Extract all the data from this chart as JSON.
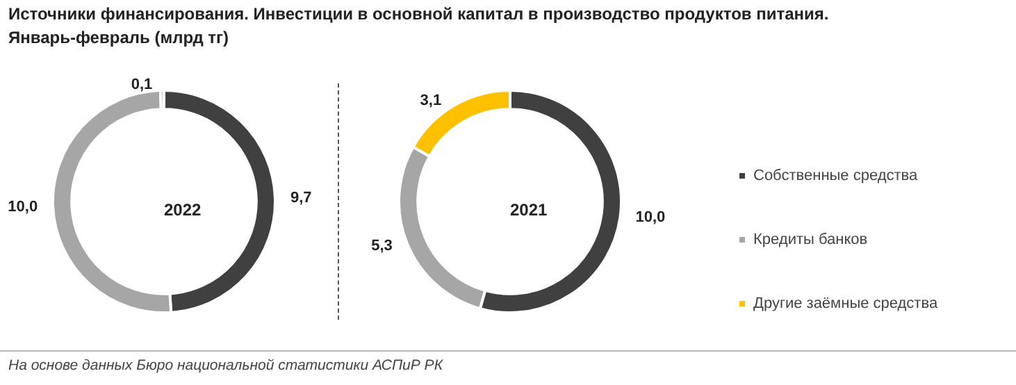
{
  "chart_data": [
    {
      "type": "donut",
      "title": "Источники финансирования. Инвестиции в основной капитал в производство продуктов питания.",
      "subtitle": "Январь-февраль (млрд тг)",
      "categories": [
        null,
        null,
        null
      ],
      "values": [
        9.7,
        10.0,
        0.1
      ],
      "value_labels": [
        "9,7",
        "10,0",
        "0,1"
      ],
      "colors": [
        "#404040",
        "#a6a6a6",
        "#ffc000"
      ],
      "annotations": [
        "2022",
        "На основе данных Бюро национальной статистики АСПиР РК"
      ]
    },
    {
      "type": "donut",
      "categories": [
        "Собственные средства",
        "Кредиты банков",
        "Другие заёмные средства"
      ],
      "values": [
        10.0,
        5.3,
        3.1
      ],
      "value_labels": [
        "10,0",
        "5,3",
        "3,1"
      ],
      "colors": [
        "#404040",
        "#a6a6a6",
        "#ffc000"
      ],
      "legend": "right",
      "annotations": [
        "2021"
      ]
    }
  ]
}
